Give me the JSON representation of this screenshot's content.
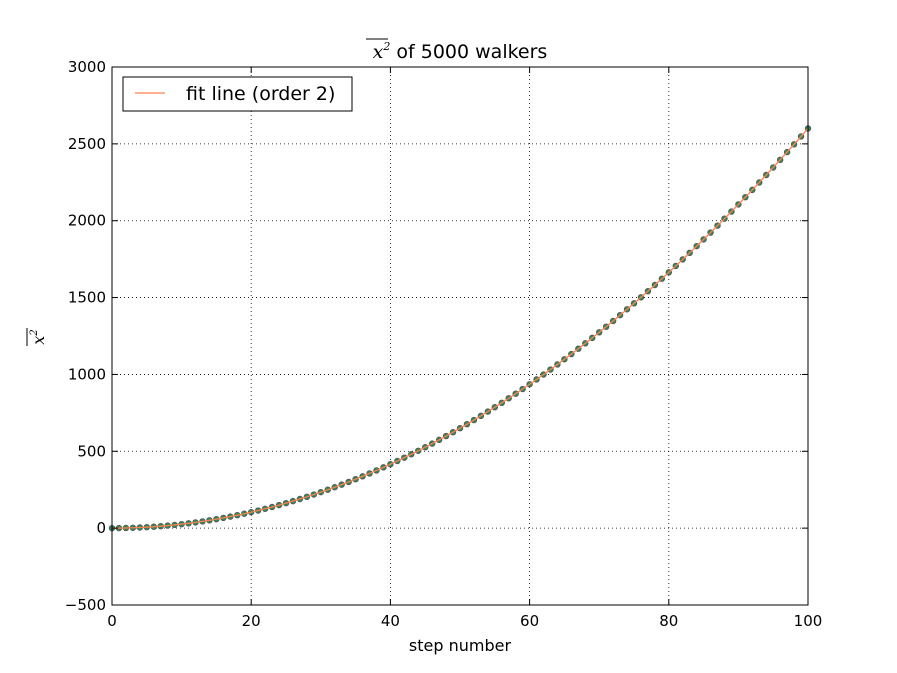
{
  "chart_data": {
    "type": "scatter",
    "title": {
      "math_base": "x",
      "math_exp": "2",
      "suffix": " of 5000 walkers"
    },
    "xlabel": "step number",
    "ylabel": {
      "math_base": "x",
      "math_exp": "2"
    },
    "xlim": [
      0,
      100
    ],
    "ylim": [
      -500,
      3000
    ],
    "xticks": [
      0,
      20,
      40,
      60,
      80,
      100
    ],
    "yticks": [
      -500,
      0,
      500,
      1000,
      1500,
      2000,
      2500,
      3000
    ],
    "xtick_labels": [
      "0",
      "20",
      "40",
      "60",
      "80",
      "100"
    ],
    "ytick_labels": [
      "−500",
      "0",
      "500",
      "1000",
      "1500",
      "2000",
      "2500",
      "3000"
    ],
    "grid": true,
    "legend": {
      "placement": "top-left",
      "entries": [
        "fit line (order 2)"
      ]
    },
    "points": {
      "x_start": 0,
      "x_end": 100,
      "x_step": 1,
      "color": "#2e8b57",
      "edge_color": "#555555"
    },
    "fit": {
      "name": "fit line (order 2)",
      "type": "polynomial",
      "order": 2,
      "coefficients": [
        0.26,
        0.0,
        0.0
      ],
      "color": "#ff7f50"
    }
  }
}
